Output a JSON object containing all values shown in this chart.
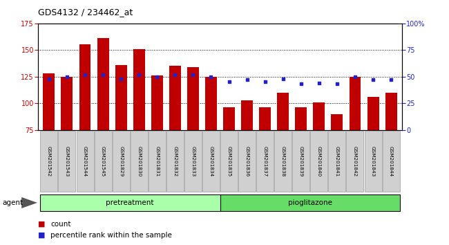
{
  "title": "GDS4132 / 234462_at",
  "samples": [
    "GSM201542",
    "GSM201543",
    "GSM201544",
    "GSM201545",
    "GSM201829",
    "GSM201830",
    "GSM201831",
    "GSM201832",
    "GSM201833",
    "GSM201834",
    "GSM201835",
    "GSM201836",
    "GSM201837",
    "GSM201838",
    "GSM201839",
    "GSM201840",
    "GSM201841",
    "GSM201842",
    "GSM201843",
    "GSM201844"
  ],
  "counts": [
    128,
    125,
    155,
    161,
    136,
    151,
    126,
    135,
    134,
    125,
    96,
    103,
    96,
    110,
    96,
    101,
    90,
    125,
    106,
    110
  ],
  "percentiles": [
    48,
    50,
    52,
    52,
    48,
    52,
    50,
    52,
    52,
    50,
    45,
    47,
    45,
    48,
    43,
    44,
    43,
    50,
    47,
    47
  ],
  "bar_color": "#c00000",
  "dot_color": "#2222cc",
  "ylim_left": [
    75,
    175
  ],
  "ylim_right": [
    0,
    100
  ],
  "yticks_left": [
    75,
    100,
    125,
    150,
    175
  ],
  "yticks_right": [
    0,
    25,
    50,
    75,
    100
  ],
  "ytick_labels_right": [
    "0",
    "25",
    "50",
    "75",
    "100%"
  ],
  "groups": [
    {
      "display": "pretreatment",
      "start": 0,
      "end": 9,
      "color": "#aaffaa"
    },
    {
      "display": "pioglitazone",
      "start": 10,
      "end": 19,
      "color": "#66dd66"
    }
  ],
  "agent_label": "agent",
  "legend_count": "count",
  "legend_pct": "percentile rank within the sample",
  "background_color": "#ffffff",
  "plot_bg": "#ffffff",
  "bar_baseline": 75,
  "grid_yticks": [
    100,
    125,
    150
  ]
}
